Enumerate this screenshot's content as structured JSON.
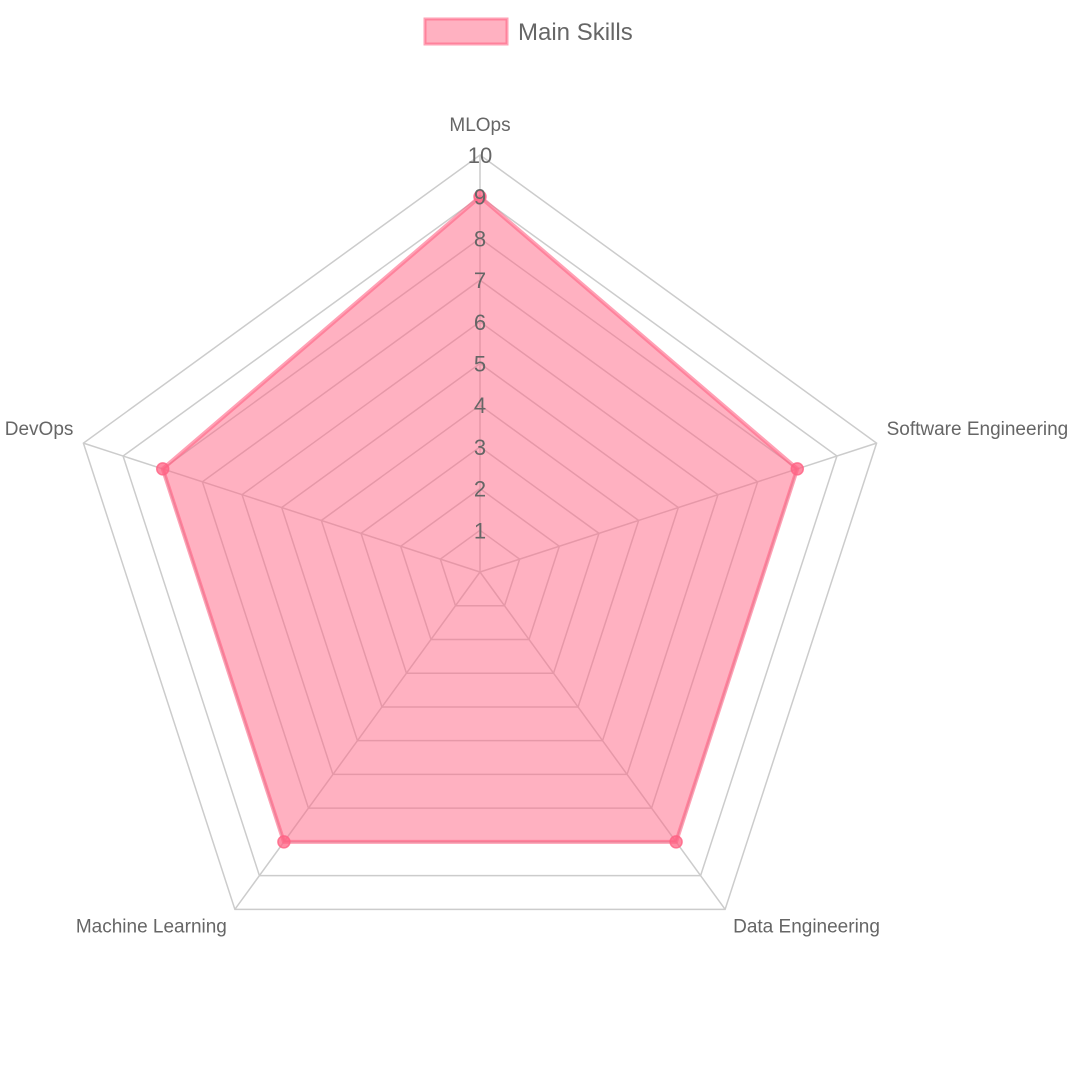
{
  "chart_data": {
    "type": "radar",
    "categories": [
      "MLOps",
      "Software Engineering",
      "Data Engineering",
      "Machine Learning",
      "DevOps"
    ],
    "series": [
      {
        "name": "Main Skills",
        "values": [
          9,
          8,
          8,
          8,
          8
        ]
      }
    ],
    "r_range": [
      0,
      10
    ],
    "ticks": [
      "1",
      "2",
      "3",
      "4",
      "5",
      "6",
      "7",
      "8",
      "9",
      "10"
    ],
    "grid": true,
    "legend_position": "top",
    "colors": {
      "series_fill": "#ff6384",
      "series_stroke": "#ff6384",
      "grid": "#cccccc",
      "axis_label": "#666666",
      "tick_label": "#666666"
    }
  }
}
